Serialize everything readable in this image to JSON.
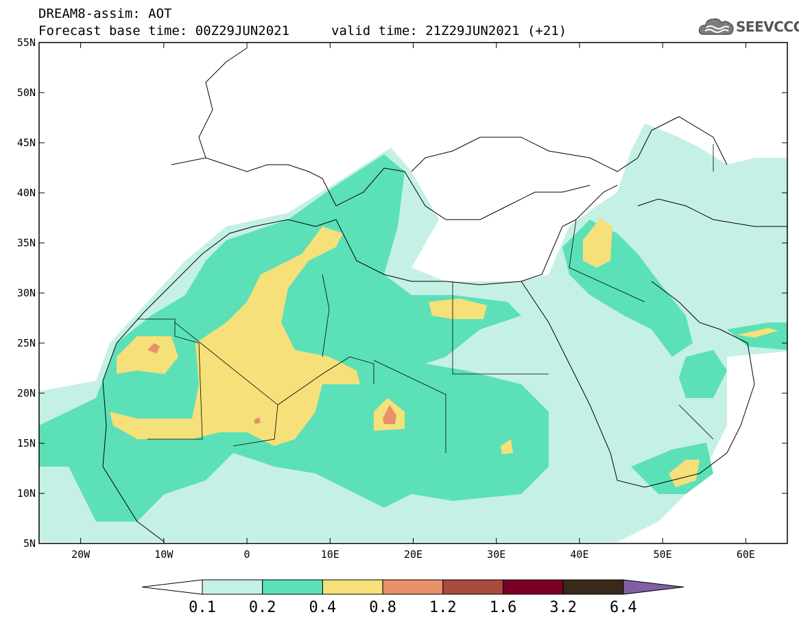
{
  "header": {
    "model_title": "DREAM8-assim: AOT",
    "base_time": "Forecast base time: 00Z29JUN2021",
    "valid_time": "valid time: 21Z29JUN2021 (+21)"
  },
  "logo": {
    "text": "SEEVCCC",
    "icon": "cloud-icon"
  },
  "map": {
    "lat_labels": [
      "55N",
      "50N",
      "45N",
      "40N",
      "35N",
      "30N",
      "25N",
      "20N",
      "15N",
      "10N",
      "5N"
    ],
    "lon_labels": [
      "20W",
      "10W",
      "0",
      "10E",
      "20E",
      "30E",
      "40E",
      "50E",
      "60E"
    ],
    "lat_range": [
      5,
      55
    ],
    "lon_range": [
      -25,
      65
    ]
  },
  "colorbar": {
    "labels": [
      "0.1",
      "0.2",
      "0.4",
      "0.8",
      "1.2",
      "1.6",
      "3.2",
      "6.4"
    ],
    "colors": [
      "#ffffff",
      "#c5f0e6",
      "#5ce0b8",
      "#f5e07a",
      "#e8906a",
      "#a84a3c",
      "#7a0026",
      "#3a2a1a",
      "#8060a0"
    ]
  }
}
